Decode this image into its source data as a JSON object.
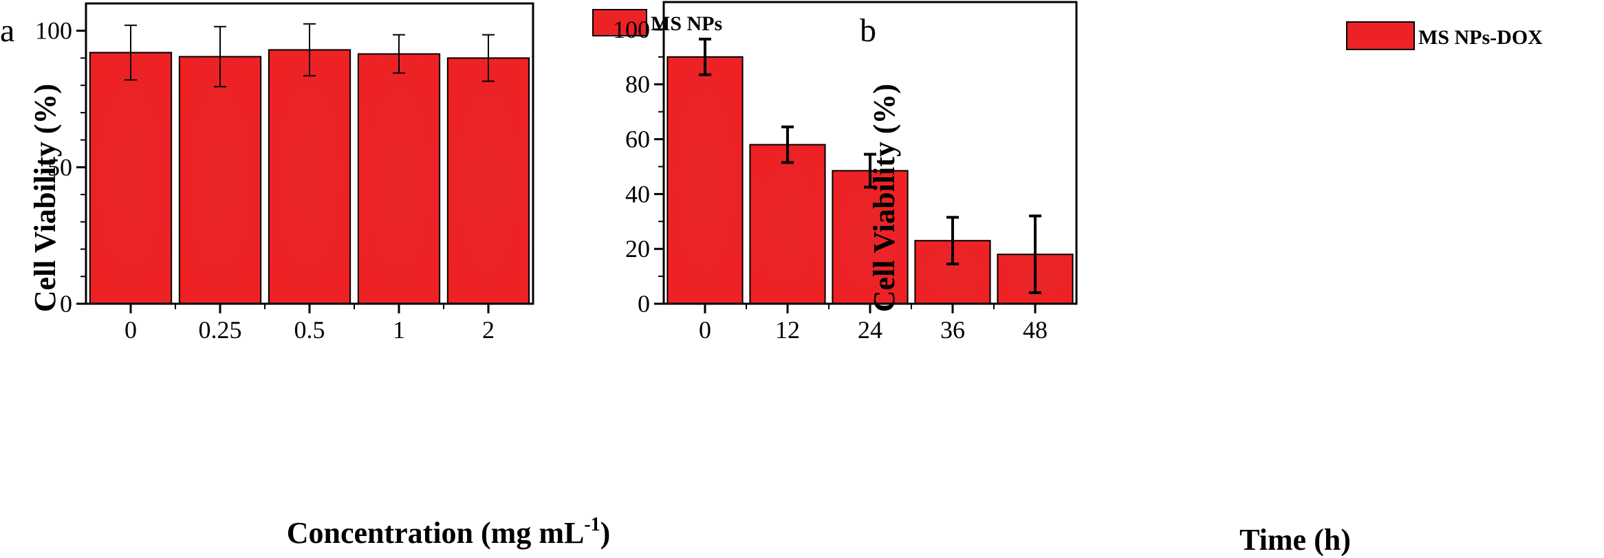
{
  "figure": {
    "panels": [
      {
        "letter": "a"
      },
      {
        "letter": "b"
      }
    ]
  },
  "colors": {
    "bar_fill": "#ED2226",
    "bar_stroke": "#000000",
    "axis": "#000000"
  },
  "chart_data": [
    {
      "type": "bar",
      "panel": "a",
      "categories": [
        "0",
        "0.25",
        "0.5",
        "1",
        "2"
      ],
      "series": [
        {
          "name": "MS NPs",
          "values": [
            92,
            90.5,
            93,
            91.5,
            90
          ],
          "errors": [
            10,
            11,
            9.5,
            7,
            8.5
          ]
        }
      ],
      "xlabel": "Concentration (mg mL",
      "xlabel_superscript": "-1",
      "xlabel_suffix": ")",
      "ylabel": "Cell Viability (%)",
      "ylim": [
        0,
        110
      ],
      "yticks": [
        0,
        50,
        100
      ],
      "yticks_minor": [
        10,
        20,
        30,
        40,
        60,
        70,
        80,
        90
      ],
      "legend_position": "top-right",
      "grid": false
    },
    {
      "type": "bar",
      "panel": "b",
      "categories": [
        "0",
        "12",
        "24",
        "36",
        "48"
      ],
      "series": [
        {
          "name": "MS NPs-DOX",
          "values": [
            90,
            58,
            48.5,
            23,
            18
          ],
          "errors": [
            6.5,
            6.5,
            6,
            8.5,
            14
          ]
        }
      ],
      "xlabel": "Time (h)",
      "ylabel": "Cell Viability (%)",
      "ylim": [
        0,
        110
      ],
      "yticks": [
        0,
        20,
        40,
        60,
        80,
        100
      ],
      "yticks_minor": [
        10,
        30,
        50,
        70,
        90
      ],
      "legend_position": "top-right",
      "grid": false
    }
  ]
}
